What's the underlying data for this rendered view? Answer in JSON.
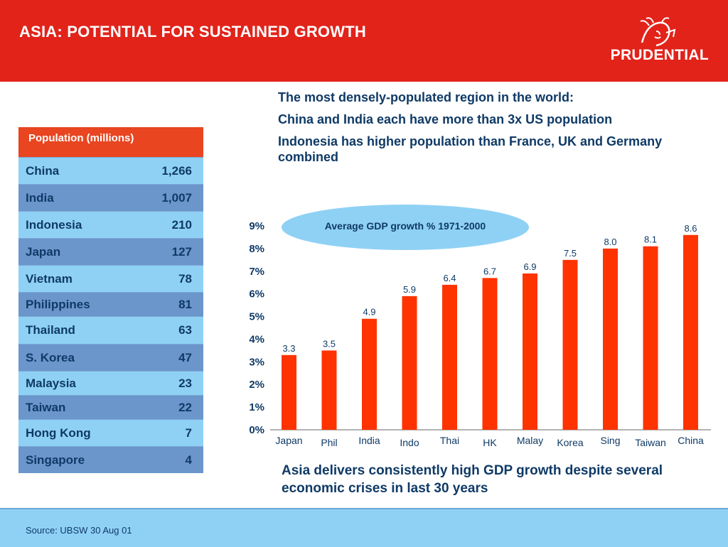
{
  "header": {
    "title": "ASIA: POTENTIAL FOR SUSTAINED GROWTH",
    "brand": "PRUDENTIAL",
    "colors": {
      "red": "#e2231a",
      "white": "#ffffff"
    }
  },
  "bullets": [
    "The most densely-populated region in the world:",
    "China and India each have more than 3x US population",
    "Indonesia has higher population than France, UK and Germany combined"
  ],
  "population_table": {
    "header": "Population (millions)",
    "rows": [
      {
        "country": "China",
        "value": "1,266"
      },
      {
        "country": "India",
        "value": "1,007"
      },
      {
        "country": "Indonesia",
        "value": "210"
      },
      {
        "country": "Japan",
        "value": "127"
      },
      {
        "country": "Vietnam",
        "value": "78"
      },
      {
        "country": "Philippines",
        "value": "81"
      },
      {
        "country": "Thailand",
        "value": "63"
      },
      {
        "country": "S. Korea",
        "value": "47"
      },
      {
        "country": "Malaysia",
        "value": "23"
      },
      {
        "country": "Taiwan",
        "value": "22"
      },
      {
        "country": "Hong Kong",
        "value": "7"
      },
      {
        "country": "Singapore",
        "value": "4"
      }
    ]
  },
  "chart_data": {
    "type": "bar",
    "title": "Average GDP growth % 1971-2000",
    "categories": [
      "Japan",
      "Phil",
      "India",
      "Indo",
      "Thai",
      "HK",
      "Malay",
      "Korea",
      "Sing",
      "Taiwan",
      "China"
    ],
    "values": [
      3.3,
      3.5,
      4.9,
      5.9,
      6.4,
      6.7,
      6.9,
      7.5,
      8.0,
      8.1,
      8.6
    ],
    "value_labels": [
      "3.3",
      "3.5",
      "4.9",
      "5.9",
      "6.4",
      "6.7",
      "6.9",
      "7.5",
      "8.0",
      "8.1",
      "8.6"
    ],
    "ylim": [
      0,
      9
    ],
    "yticks": [
      "0%",
      "1%",
      "2%",
      "3%",
      "4%",
      "5%",
      "6%",
      "7%",
      "8%",
      "9%"
    ],
    "bar_color": "#ff3300",
    "grid": false
  },
  "conclusion": "Asia delivers consistently high GDP growth despite several economic crises in last 30 years",
  "footer": {
    "source": "Source: UBSW 30 Aug 01"
  }
}
